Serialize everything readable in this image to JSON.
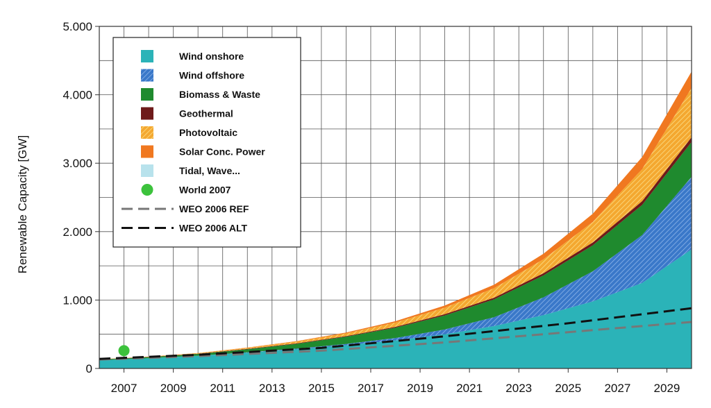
{
  "chart_data": {
    "type": "area",
    "title": "",
    "xlabel": "",
    "ylabel": "Renewable Capacity [GW]",
    "x": [
      2006,
      2008,
      2010,
      2012,
      2014,
      2016,
      2018,
      2020,
      2022,
      2024,
      2026,
      2028,
      2030
    ],
    "x_ticks": [
      "2007",
      "2009",
      "2011",
      "2013",
      "2015",
      "2017",
      "2019",
      "2021",
      "2023",
      "2025",
      "2027",
      "2029"
    ],
    "x_tick_values": [
      2007,
      2009,
      2011,
      2013,
      2015,
      2017,
      2019,
      2021,
      2023,
      2025,
      2027,
      2029
    ],
    "y_ticks": [
      "0",
      "1.000",
      "2.000",
      "3.000",
      "4.000",
      "5.000"
    ],
    "y_tick_values": [
      0,
      1000,
      2000,
      3000,
      4000,
      5000
    ],
    "xlim": [
      2006,
      2030
    ],
    "ylim": [
      0,
      5000
    ],
    "grid": true,
    "legend_position": "top-left",
    "stacked_series": [
      {
        "name": "Wind onshore",
        "color": "#2bb3b8",
        "pattern": "solid",
        "values": [
          120,
          150,
          185,
          230,
          280,
          340,
          410,
          500,
          620,
          780,
          980,
          1250,
          1740
        ]
      },
      {
        "name": "Wind offshore",
        "color": "#3a78c9",
        "pattern": "hatch",
        "values": [
          0,
          0,
          2,
          5,
          10,
          18,
          35,
          70,
          130,
          260,
          440,
          700,
          1060
        ]
      },
      {
        "name": "Biomass & Waste",
        "color": "#1f8a2e",
        "pattern": "solid",
        "values": [
          10,
          15,
          25,
          45,
          70,
          105,
          150,
          205,
          260,
          320,
          380,
          440,
          510
        ]
      },
      {
        "name": "Geothermal",
        "color": "#6e1a1a",
        "pattern": "solid",
        "values": [
          2,
          3,
          4,
          6,
          8,
          10,
          14,
          18,
          24,
          32,
          42,
          55,
          70
        ]
      },
      {
        "name": "Photovoltaic",
        "color": "#f4a830",
        "pattern": "hatch",
        "values": [
          2,
          4,
          8,
          15,
          25,
          40,
          62,
          95,
          140,
          205,
          300,
          470,
          720
        ]
      },
      {
        "name": "Solar Conc. Power",
        "color": "#f07820",
        "pattern": "solid",
        "values": [
          0,
          1,
          2,
          4,
          7,
          12,
          20,
          32,
          50,
          80,
          120,
          175,
          240
        ]
      },
      {
        "name": "Tidal, Wave...",
        "color": "#b8e2ec",
        "pattern": "solid",
        "values": [
          0,
          0,
          0,
          0,
          0,
          0,
          0,
          0,
          0,
          0,
          0,
          0,
          0
        ]
      }
    ],
    "points": [
      {
        "name": "World 2007",
        "color": "#3cc23c",
        "x": 2007,
        "y": 260
      }
    ],
    "lines": [
      {
        "name": "WEO 2006 REF",
        "color": "#777777",
        "dash": "dashed",
        "x": [
          2006,
          2010,
          2015,
          2020,
          2025,
          2030
        ],
        "y": [
          130,
          180,
          260,
          380,
          530,
          680
        ]
      },
      {
        "name": "WEO 2006 ALT",
        "color": "#111111",
        "dash": "dashed",
        "x": [
          2006,
          2010,
          2015,
          2020,
          2025,
          2030
        ],
        "y": [
          140,
          200,
          300,
          470,
          660,
          880
        ]
      }
    ],
    "legend": [
      {
        "label": "Wind onshore",
        "kind": "swatch",
        "color": "#2bb3b8",
        "pattern": "solid"
      },
      {
        "label": "Wind offshore",
        "kind": "swatch",
        "color": "#3a78c9",
        "pattern": "hatch"
      },
      {
        "label": "Biomass & Waste",
        "kind": "swatch",
        "color": "#1f8a2e",
        "pattern": "solid"
      },
      {
        "label": "Geothermal",
        "kind": "swatch",
        "color": "#6e1a1a",
        "pattern": "solid"
      },
      {
        "label": "Photovoltaic",
        "kind": "swatch",
        "color": "#f4a830",
        "pattern": "hatch"
      },
      {
        "label": "Solar Conc. Power",
        "kind": "swatch",
        "color": "#f07820",
        "pattern": "solid"
      },
      {
        "label": "Tidal, Wave...",
        "kind": "swatch",
        "color": "#b8e2ec",
        "pattern": "solid"
      },
      {
        "label": "World 2007",
        "kind": "dot",
        "color": "#3cc23c"
      },
      {
        "label": "WEO 2006 REF",
        "kind": "dash",
        "color": "#777777"
      },
      {
        "label": "WEO 2006 ALT",
        "kind": "dash",
        "color": "#111111"
      }
    ]
  }
}
